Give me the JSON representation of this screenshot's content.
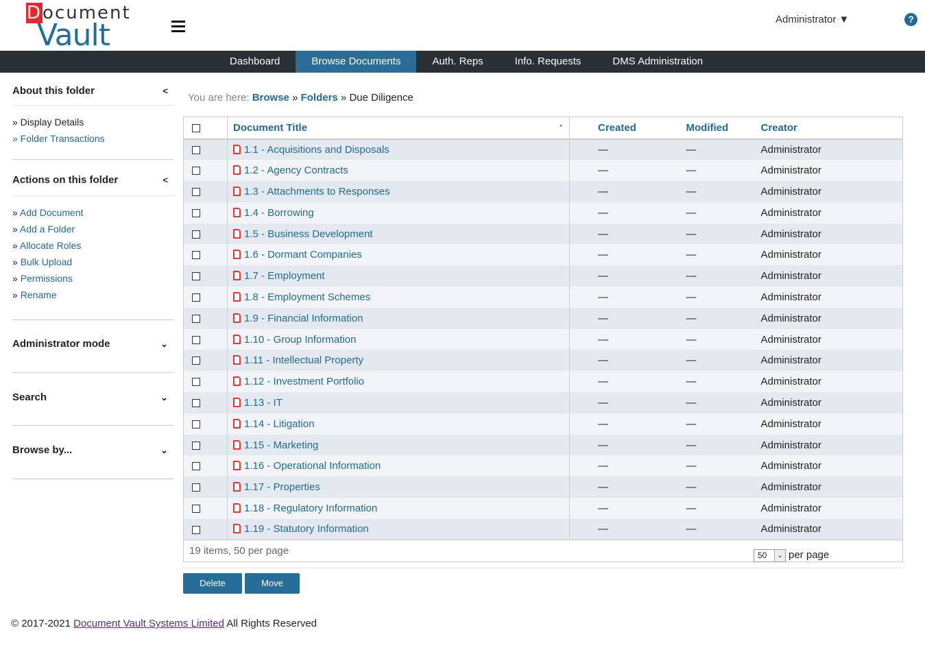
{
  "logo": {
    "text": "Document Vault"
  },
  "header": {
    "user": "Administrator ▼",
    "help": "?"
  },
  "nav": [
    "Dashboard",
    "Browse Documents",
    "Auth. Reps",
    "Info. Requests",
    "DMS Administration"
  ],
  "sidebar": {
    "about": {
      "title": "About this folder",
      "items": [
        "» Display Details",
        "» Folder Transactions"
      ]
    },
    "actions": {
      "title": "Actions on this folder",
      "items": [
        "» Add Document",
        "» Add a Folder",
        "» Allocate Roles",
        "» Bulk Upload",
        "» Permissions",
        "» Rename"
      ]
    },
    "admin": "Administrator mode",
    "search": "Search",
    "browse": "Browse by..."
  },
  "breadcrumb": {
    "prefix": "You are here:",
    "browse": "Browse",
    "folders": "Folders",
    "current": "Due Diligence",
    "sep": "»"
  },
  "table": {
    "headers": [
      "Document Title",
      "Created",
      "Modified",
      "Creator"
    ],
    "rows": [
      {
        "title": "1.1 - Acquisitions and Disposals",
        "created": "—",
        "modified": "—",
        "creator": "Administrator"
      },
      {
        "title": "1.2 - Agency Contracts",
        "created": "—",
        "modified": "—",
        "creator": "Administrator"
      },
      {
        "title": "1.3 - Attachments to Responses",
        "created": "—",
        "modified": "—",
        "creator": "Administrator"
      },
      {
        "title": "1.4 - Borrowing",
        "created": "—",
        "modified": "—",
        "creator": "Administrator"
      },
      {
        "title": "1.5 - Business Development",
        "created": "—",
        "modified": "—",
        "creator": "Administrator"
      },
      {
        "title": "1.6 - Dormant Companies",
        "created": "—",
        "modified": "—",
        "creator": "Administrator"
      },
      {
        "title": "1.7 - Employment",
        "created": "—",
        "modified": "—",
        "creator": "Administrator"
      },
      {
        "title": "1.8 - Employment Schemes",
        "created": "—",
        "modified": "—",
        "creator": "Administrator"
      },
      {
        "title": "1.9 - Financial Information",
        "created": "—",
        "modified": "—",
        "creator": "Administrator"
      },
      {
        "title": "1.10 - Group Information",
        "created": "—",
        "modified": "—",
        "creator": "Administrator"
      },
      {
        "title": "1.11 - Intellectual Property",
        "created": "—",
        "modified": "—",
        "creator": "Administrator"
      },
      {
        "title": "1.12 - Investment Portfolio",
        "created": "—",
        "modified": "—",
        "creator": "Administrator"
      },
      {
        "title": "1.13 - IT",
        "created": "—",
        "modified": "—",
        "creator": "Administrator"
      },
      {
        "title": "1.14 - Litigation",
        "created": "—",
        "modified": "—",
        "creator": "Administrator"
      },
      {
        "title": "1.15 - Marketing",
        "created": "—",
        "modified": "—",
        "creator": "Administrator"
      },
      {
        "title": "1.16 - Operational Information",
        "created": "—",
        "modified": "—",
        "creator": "Administrator"
      },
      {
        "title": "1.17 - Properties",
        "created": "—",
        "modified": "—",
        "creator": "Administrator"
      },
      {
        "title": "1.18 - Regulatory Information",
        "created": "—",
        "modified": "—",
        "creator": "Administrator"
      },
      {
        "title": "1.19 - Statutory Information",
        "created": "—",
        "modified": "—",
        "creator": "Administrator"
      }
    ],
    "summary": "19 items, 50 per page",
    "per_page_value": "50",
    "per_page_label": "per page"
  },
  "buttons": {
    "delete": "Delete",
    "move": "Move"
  },
  "footer": {
    "prefix": "© 2017-2021",
    "link": "Document Vault Systems Limited",
    "suffix": "All Rights Reserved"
  },
  "colors": {
    "nav_bg": "#293035",
    "nav_active": "#2b6d99",
    "link": "#1f6a9a",
    "button": "#266d99"
  }
}
